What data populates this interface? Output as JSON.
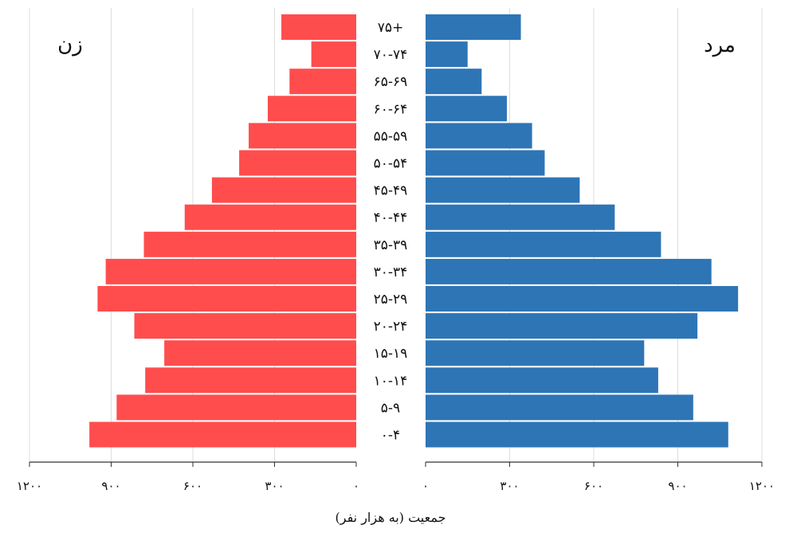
{
  "chart_data": {
    "type": "bar",
    "subtype": "population-pyramid",
    "xlabel": "جمعیت (به هزار نفر)",
    "left_title": "زن",
    "right_title": "مرد",
    "colors": {
      "female": "#ff4d4d",
      "male": "#2e75b6",
      "grid": "#dddddd",
      "axis": "#333333"
    },
    "xlim": [
      0,
      1200
    ],
    "ticks_left": [
      {
        "value": 1200,
        "label": "۱۲۰۰"
      },
      {
        "value": 900,
        "label": "۹۰۰"
      },
      {
        "value": 600,
        "label": "۶۰۰"
      },
      {
        "value": 300,
        "label": "۳۰۰"
      },
      {
        "value": 0,
        "label": "۰"
      }
    ],
    "ticks_right": [
      {
        "value": 0,
        "label": "۰"
      },
      {
        "value": 300,
        "label": "۳۰۰"
      },
      {
        "value": 600,
        "label": "۶۰۰"
      },
      {
        "value": 900,
        "label": "۹۰۰"
      },
      {
        "value": 1200,
        "label": "۱۲۰۰"
      }
    ],
    "categories": [
      "۷۵+",
      "۷۰-۷۴",
      "۶۵-۶۹",
      "۶۰-۶۴",
      "۵۵-۵۹",
      "۵۰-۵۴",
      "۴۵-۴۹",
      "۴۰-۴۴",
      "۳۵-۳۹",
      "۳۰-۳۴",
      "۲۵-۲۹",
      "۲۰-۲۴",
      "۱۵-۱۹",
      "۱۰-۱۴",
      "۵-۹",
      "۰-۴"
    ],
    "series": [
      {
        "name": "زن",
        "side": "left",
        "values": [
          275,
          165,
          245,
          325,
          395,
          430,
          530,
          630,
          780,
          920,
          950,
          815,
          705,
          775,
          880,
          980
        ]
      },
      {
        "name": "مرد",
        "side": "right",
        "values": [
          340,
          150,
          200,
          290,
          380,
          425,
          550,
          675,
          840,
          1020,
          1115,
          970,
          780,
          830,
          955,
          1080
        ]
      }
    ]
  }
}
